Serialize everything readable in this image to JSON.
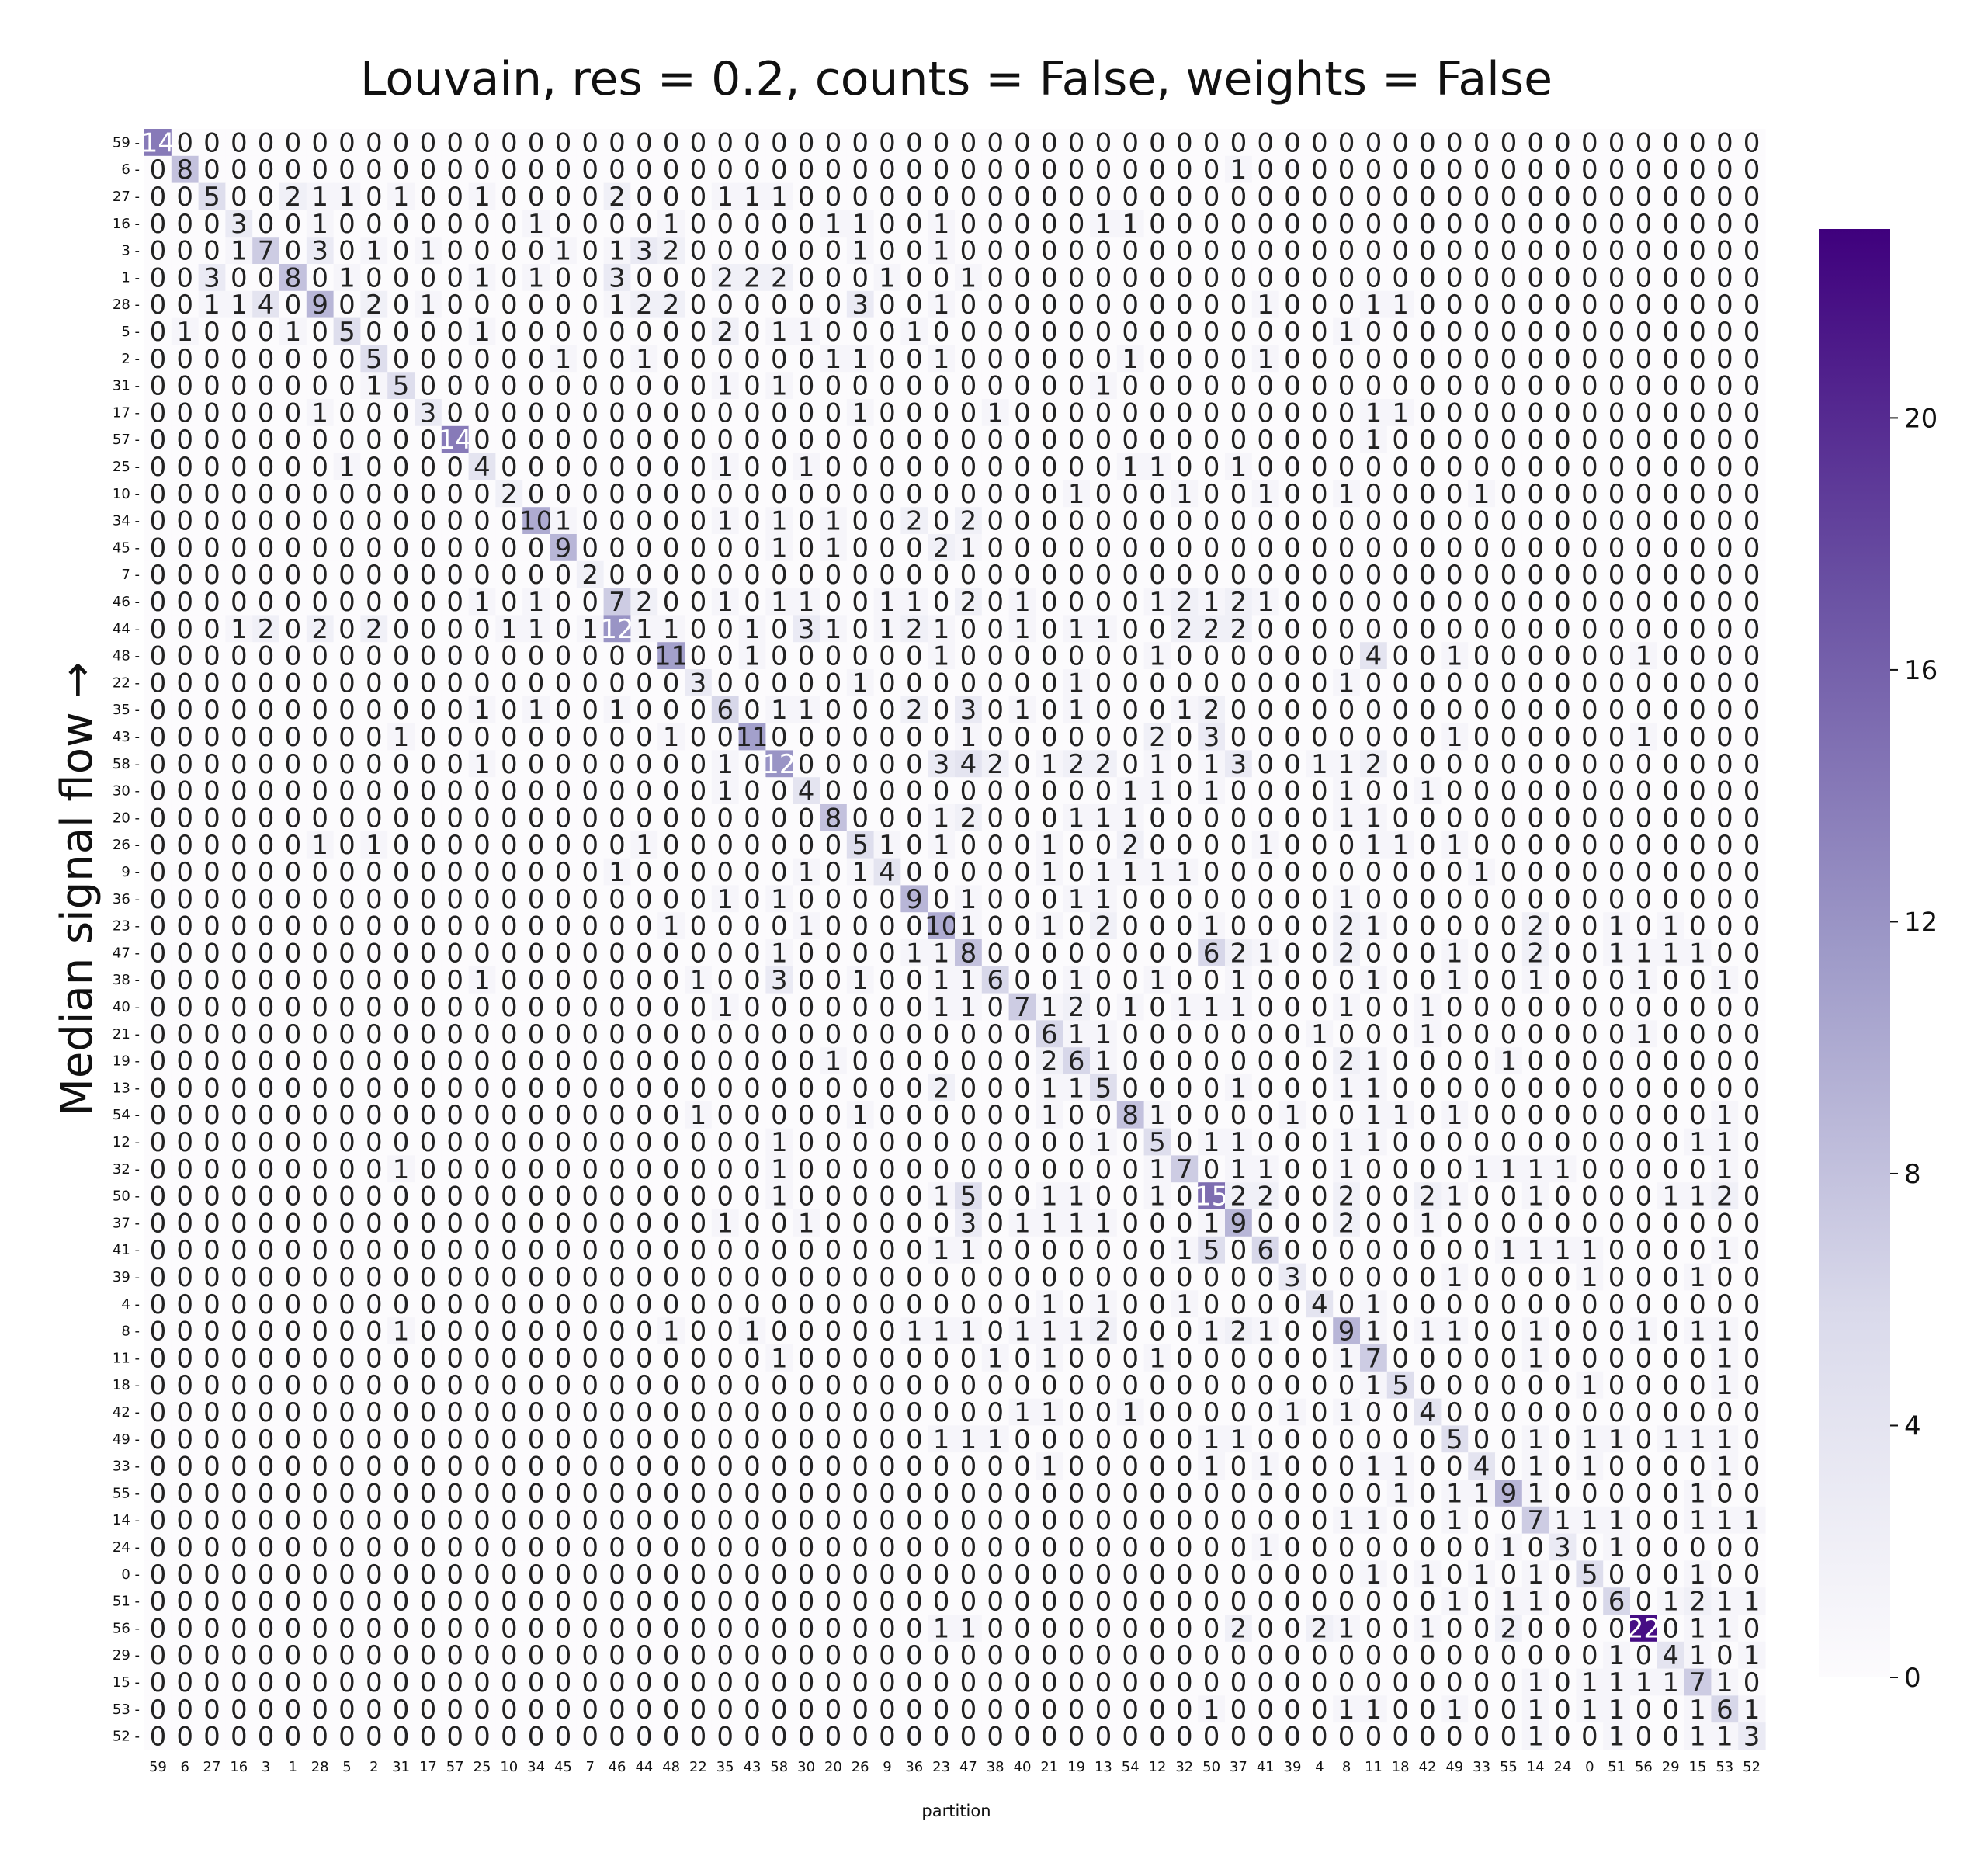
{
  "chart_data": {
    "type": "heatmap",
    "title": "Louvain, res = 0.2, counts = False, weights = False",
    "xlabel": "partition",
    "ylabel": "Median signal flow →",
    "color_range": [
      0,
      23
    ],
    "colorbar_ticks": [
      0,
      4,
      8,
      12,
      16,
      20
    ],
    "colors": {
      "low": "#fcfbfd",
      "mid": "#9e9ac8",
      "high": "#3f007d"
    },
    "x_labels": [
      "59",
      "6",
      "27",
      "16",
      "3",
      "1",
      "28",
      "5",
      "2",
      "31",
      "17",
      "57",
      "25",
      "10",
      "34",
      "45",
      "7",
      "46",
      "44",
      "48",
      "22",
      "35",
      "43",
      "58",
      "30",
      "20",
      "26",
      "9",
      "36",
      "23",
      "47",
      "38",
      "40",
      "21",
      "19",
      "13",
      "54",
      "12",
      "32",
      "50",
      "37",
      "41",
      "39",
      "4",
      "8",
      "11",
      "18",
      "42",
      "49",
      "33",
      "55",
      "14",
      "24",
      "0",
      "51",
      "56",
      "29",
      "15",
      "53",
      "52"
    ],
    "y_labels": [
      "59",
      "6",
      "27",
      "16",
      "3",
      "1",
      "28",
      "5",
      "2",
      "31",
      "17",
      "57",
      "25",
      "10",
      "34",
      "45",
      "7",
      "46",
      "44",
      "48",
      "22",
      "35",
      "43",
      "58",
      "30",
      "20",
      "26",
      "9",
      "36",
      "23",
      "47",
      "38",
      "40",
      "21",
      "19",
      "13",
      "54",
      "12",
      "32",
      "50",
      "37",
      "41",
      "39",
      "4",
      "8",
      "11",
      "18",
      "42",
      "49",
      "33",
      "55",
      "14",
      "24",
      "0",
      "51",
      "56",
      "29",
      "15",
      "53",
      "52"
    ],
    "rows": [
      "14 0 0 0 0 0 0 0 0 0 0 0 0 0 0 0 0 0 0 0 0 0 0 0 0 0 0 0 0 0 0 0 0 0 0 0 0 0 0 0 0 0 0 0 0 0 0 0 0 0 0 0 0 0 0 0 0 0 0 0",
      "0 8 0 0 0 0 0 0 0 0 0 0 0 0 0 0 0 0 0 0 0 0 0 0 0 0 0 0 0 0 0 0 0 0 0 0 0 0 0 0 1 0 0 0 0 0 0 0 0 0 0 0 0 0 0 0 0 0 0 0",
      "0 0 5 0 0 2 1 1 0 1 0 0 1 0 0 0 0 2 0 0 0 1 1 1 0 0 0 0 0 0 0 0 0 0 0 0 0 0 0 0 0 0 0 0 0 0 0 0 0 0 0 0 0 0 0 0 0 0 0 0",
      "0 0 0 3 0 0 1 0 0 0 0 0 0 0 1 0 0 0 0 1 0 0 0 0 0 1 1 0 0 1 0 0 0 0 0 1 1 0 0 0 0 0 0 0 0 0 0 0 0 0 0 0 0 0 0 0 0 0 0 0",
      "0 0 0 1 7 0 3 0 1 0 1 0 0 0 0 1 0 1 3 2 0 0 0 0 0 0 1 0 0 1 0 0 0 0 0 0 0 0 0 0 0 0 0 0 0 0 0 0 0 0 0 0 0 0 0 0 0 0 0 0",
      "0 0 3 0 0 8 0 1 0 0 0 0 1 0 1 0 0 3 0 0 0 2 2 2 0 0 0 1 0 0 1 0 0 0 0 0 0 0 0 0 0 0 0 0 0 0 0 0 0 0 0 0 0 0 0 0 0 0 0 0",
      "0 0 1 1 4 0 9 0 2 0 1 0 0 0 0 0 0 1 2 2 0 0 0 0 0 0 3 0 0 1 0 0 0 0 0 0 0 0 0 0 0 1 0 0 0 1 1 0 0 0 0 0 0 0 0 0 0 0 0 0",
      "0 1 0 0 0 1 0 5 0 0 0 0 1 0 0 0 0 0 0 0 0 2 0 1 1 0 0 0 1 0 0 0 0 0 0 0 0 0 0 0 0 0 0 0 1 0 0 0 0 0 0 0 0 0 0 0 0 0 0 0",
      "0 0 0 0 0 0 0 0 5 0 0 0 0 0 0 1 0 0 1 0 0 0 0 0 0 1 1 0 0 1 0 0 0 0 0 0 1 0 0 0 0 1 0 0 0 0 0 0 0 0 0 0 0 0 0 0 0 0 0 0",
      "0 0 0 0 0 0 0 0 1 5 0 0 0 0 0 0 0 0 0 0 0 1 0 1 0 0 0 0 0 0 0 0 0 0 0 1 0 0 0 0 0 0 0 0 0 0 0 0 0 0 0 0 0 0 0 0 0 0 0 0",
      "0 0 0 0 0 0 1 0 0 0 3 0 0 0 0 0 0 0 0 0 0 0 0 0 0 0 1 0 0 0 0 1 0 0 0 0 0 0 0 0 0 0 0 0 0 1 1 0 0 0 0 0 0 0 0 0 0 0 0 0",
      "0 0 0 0 0 0 0 0 0 0 0 14 0 0 0 0 0 0 0 0 0 0 0 0 0 0 0 0 0 0 0 0 0 0 0 0 0 0 0 0 0 0 0 0 0 1 0 0 0 0 0 0 0 0 0 0 0 0 0 0",
      "0 0 0 0 0 0 0 1 0 0 0 0 4 0 0 0 0 0 0 0 0 1 0 0 1 0 0 0 0 0 0 0 0 0 0 0 1 1 0 0 1 0 0 0 0 0 0 0 0 0 0 0 0 0 0 0 0 0 0 0",
      "0 0 0 0 0 0 0 0 0 0 0 0 0 2 0 0 0 0 0 0 0 0 0 0 0 0 0 0 0 0 0 0 0 0 1 0 0 0 1 0 0 1 0 0 1 0 0 0 0 1 0 0 0 0 0 0 0 0 0 0",
      "0 0 0 0 0 0 0 0 0 0 0 0 0 0 10 1 0 0 0 0 0 1 0 1 0 1 0 0 2 0 2 0 0 0 0 0 0 0 0 0 0 0 0 0 0 0 0 0 0 0 0 0 0 0 0 0 0 0 0 0",
      "0 0 0 0 0 0 0 0 0 0 0 0 0 0 0 9 0 0 0 0 0 0 0 1 0 1 0 0 0 2 1 0 0 0 0 0 0 0 0 0 0 0 0 0 0 0 0 0 0 0 0 0 0 0 0 0 0 0 0 0",
      "0 0 0 0 0 0 0 0 0 0 0 0 0 0 0 0 2 0 0 0 0 0 0 0 0 0 0 0 0 0 0 0 0 0 0 0 0 0 0 0 0 0 0 0 0 0 0 0 0 0 0 0 0 0 0 0 0 0 0 0",
      "0 0 0 0 0 0 0 0 0 0 0 0 1 0 1 0 0 7 2 0 0 1 0 1 1 0 0 1 1 0 2 0 1 0 0 0 0 1 2 1 2 1 0 0 0 0 0 0 0 0 0 0 0 0 0 0 0 0 0 0",
      "0 0 0 1 2 0 2 0 2 0 0 0 0 1 1 0 1 12 1 1 0 0 1 0 3 1 0 1 2 1 0 0 1 0 1 1 0 0 2 2 2 0 0 0 0 0 0 0 0 0 0 0 0 0 0 0 0 0 0 0",
      "0 0 0 0 0 0 0 0 0 0 0 0 0 0 0 0 0 0 0 11 0 0 1 0 0 0 0 0 0 1 0 0 0 0 0 0 0 1 0 0 0 0 0 0 0 4 0 0 1 0 0 0 0 0 0 1 0 0 0 0",
      "0 0 0 0 0 0 0 0 0 0 0 0 0 0 0 0 0 0 0 0 3 0 0 0 0 0 1 0 0 0 0 0 0 0 1 0 0 0 0 0 0 0 0 0 1 0 0 0 0 0 0 0 0 0 0 0 0 0 0 0",
      "0 0 0 0 0 0 0 0 0 0 0 0 1 0 1 0 0 1 0 0 0 6 0 1 1 0 0 0 2 0 3 0 1 0 1 0 0 0 1 2 0 0 0 0 0 0 0 0 0 0 0 0 0 0 0 0 0 0 0 0",
      "0 0 0 0 0 0 0 0 0 1 0 0 0 0 0 0 0 0 0 1 0 0 11 0 0 0 0 0 0 0 1 0 0 0 0 0 0 2 0 3 0 0 0 0 0 0 0 0 1 0 0 0 0 0 0 1 0 0 0 0",
      "0 0 0 0 0 0 0 0 0 0 0 0 1 0 0 0 0 0 0 0 0 1 0 12 0 0 0 0 0 3 4 2 0 1 2 2 0 1 0 1 3 0 0 1 1 2 0 0 0 0 0 0 0 0 0 0 0 0 0 0",
      "0 0 0 0 0 0 0 0 0 0 0 0 0 0 0 0 0 0 0 0 0 1 0 0 4 0 0 0 0 0 0 0 0 0 0 0 1 1 0 1 0 0 0 0 1 0 0 1 0 0 0 0 0 0 0 0 0 0 0 0",
      "0 0 0 0 0 0 0 0 0 0 0 0 0 0 0 0 0 0 0 0 0 0 0 0 0 8 0 0 0 1 2 0 0 0 1 1 1 0 0 0 0 0 0 0 1 1 0 0 0 0 0 0 0 0 0 0 0 0 0 0",
      "0 0 0 0 0 0 1 0 1 0 0 0 0 0 0 0 0 0 1 0 0 0 0 0 0 0 5 1 0 1 0 0 0 1 0 0 2 0 0 0 0 1 0 0 0 1 1 0 1 0 0 0 0 0 0 0 0 0 0 0",
      "0 0 0 0 0 0 0 0 0 0 0 0 0 0 0 0 0 1 0 0 0 0 0 0 1 0 1 4 0 0 0 0 0 1 0 1 1 1 1 0 0 0 0 0 0 0 0 0 0 1 0 0 0 0 0 0 0 0 0 0",
      "0 0 0 0 0 0 0 0 0 0 0 0 0 0 0 0 0 0 0 0 0 1 0 1 0 0 0 0 9 0 1 0 0 0 1 1 0 0 0 0 0 0 0 0 1 0 0 0 0 0 0 0 0 0 0 0 0 0 0 0",
      "0 0 0 0 0 0 0 0 0 0 0 0 0 0 0 0 0 0 0 1 0 0 0 0 1 0 0 0 0 10 1 0 0 1 0 2 0 0 0 1 0 0 0 0 2 1 0 0 0 0 0 2 0 0 1 0 1 0 0 0",
      "0 0 0 0 0 0 0 0 0 0 0 0 0 0 0 0 0 0 0 0 0 0 0 1 0 0 0 0 1 1 8 0 0 0 0 0 0 0 0 6 2 1 0 0 2 0 0 0 1 0 0 2 0 0 1 1 1 1 0 0",
      "0 0 0 0 0 0 0 0 0 0 0 0 1 0 0 0 0 0 0 0 1 0 0 3 0 0 1 0 0 1 1 6 0 0 1 0 0 1 0 0 1 0 0 0 0 1 0 0 1 0 0 1 0 0 0 1 0 0 1 0",
      "0 0 0 0 0 0 0 0 0 0 0 0 0 0 0 0 0 0 0 0 0 1 0 0 0 0 0 0 0 1 1 0 7 1 2 0 1 0 1 1 1 0 0 0 1 0 0 1 0 0 0 0 0 0 0 0 0 0 0 0",
      "0 0 0 0 0 0 0 0 0 0 0 0 0 0 0 0 0 0 0 0 0 0 0 0 0 0 0 0 0 0 0 0 0 6 1 1 0 0 0 0 0 0 0 1 0 0 0 1 0 0 0 0 0 0 0 1 0 0 0 0",
      "0 0 0 0 0 0 0 0 0 0 0 0 0 0 0 0 0 0 0 0 0 0 0 0 0 1 0 0 0 0 0 0 0 2 6 1 0 0 0 0 0 0 0 0 2 1 0 0 0 0 1 0 0 0 0 0 0 0 0 0",
      "0 0 0 0 0 0 0 0 0 0 0 0 0 0 0 0 0 0 0 0 0 0 0 0 0 0 0 0 0 2 0 0 0 1 1 5 0 0 0 0 1 0 0 0 1 1 0 0 0 0 0 0 0 0 0 0 0 0 0 0",
      "0 0 0 0 0 0 0 0 0 0 0 0 0 0 0 0 0 0 0 0 1 0 0 0 0 0 1 0 0 0 0 0 0 1 0 0 8 1 0 0 0 0 1 0 0 1 1 0 1 0 0 0 0 0 0 0 0 0 1 0",
      "0 0 0 0 0 0 0 0 0 0 0 0 0 0 0 0 0 0 0 0 0 0 0 1 0 0 0 0 0 0 0 0 0 0 0 1 0 5 0 1 1 0 0 0 1 1 0 0 0 0 0 0 0 0 0 0 0 1 1 0",
      "0 0 0 0 0 0 0 0 0 1 0 0 0 0 0 0 0 0 0 0 0 0 0 1 0 0 0 0 0 0 0 0 0 0 0 0 0 1 7 0 1 1 0 0 1 0 0 0 0 1 1 1 1 0 0 0 0 0 1 0",
      "0 0 0 0 0 0 0 0 0 0 0 0 0 0 0 0 0 0 0 0 0 0 0 1 0 0 0 0 0 1 5 0 0 1 1 0 0 1 0 15 2 2 0 0 2 0 0 2 1 0 0 1 0 0 0 0 1 1 2 0",
      "0 0 0 0 0 0 0 0 0 0 0 0 0 0 0 0 0 0 0 0 0 1 0 0 1 0 0 0 0 0 3 0 1 1 1 1 0 0 0 1 9 0 0 0 2 0 0 1 0 0 0 0 0 0 0 0 0 0 0 0",
      "0 0 0 0 0 0 0 0 0 0 0 0 0 0 0 0 0 0 0 0 0 0 0 0 0 0 0 0 0 1 1 0 0 0 0 0 0 0 1 5 0 6 0 0 0 0 0 0 0 0 1 1 1 1 0 0 0 0 1 0",
      "0 0 0 0 0 0 0 0 0 0 0 0 0 0 0 0 0 0 0 0 0 0 0 0 0 0 0 0 0 0 0 0 0 0 0 0 0 0 0 0 0 0 3 0 0 0 0 0 1 0 0 0 0 1 0 0 0 1 0 0",
      "0 0 0 0 0 0 0 0 0 0 0 0 0 0 0 0 0 0 0 0 0 0 0 0 0 0 0 0 0 0 0 0 0 1 0 1 0 0 1 0 0 0 0 4 0 1 0 0 0 0 0 0 0 0 0 0 0 0 0 0",
      "0 0 0 0 0 0 0 0 0 1 0 0 0 0 0 0 0 0 0 1 0 0 1 0 0 0 0 0 1 1 1 0 1 1 1 2 0 0 0 1 2 1 0 0 9 1 0 1 1 0 0 1 0 0 0 1 0 1 1 0",
      "0 0 0 0 0 0 0 0 0 0 0 0 0 0 0 0 0 0 0 0 0 0 0 1 0 0 0 0 0 0 0 1 0 1 0 0 0 1 0 0 0 0 0 0 1 7 0 0 0 0 0 1 0 0 0 0 0 0 1 0",
      "0 0 0 0 0 0 0 0 0 0 0 0 0 0 0 0 0 0 0 0 0 0 0 0 0 0 0 0 0 0 0 0 0 0 0 0 0 0 0 0 0 0 0 0 0 1 5 0 0 0 0 0 0 1 0 0 0 0 1 0",
      "0 0 0 0 0 0 0 0 0 0 0 0 0 0 0 0 0 0 0 0 0 0 0 0 0 0 0 0 0 0 0 0 1 1 0 0 1 0 0 0 0 0 1 0 1 0 0 4 0 0 0 0 0 0 0 0 0 0 0 0",
      "0 0 0 0 0 0 0 0 0 0 0 0 0 0 0 0 0 0 0 0 0 0 0 0 0 0 0 0 0 1 1 1 0 0 0 0 0 0 0 1 1 0 0 0 0 0 0 0 5 0 0 1 0 1 1 0 1 1 1 0",
      "0 0 0 0 0 0 0 0 0 0 0 0 0 0 0 0 0 0 0 0 0 0 0 0 0 0 0 0 0 0 0 0 0 1 0 0 0 0 0 1 0 1 0 0 0 1 1 0 0 4 0 1 0 1 0 0 0 0 1 0",
      "0 0 0 0 0 0 0 0 0 0 0 0 0 0 0 0 0 0 0 0 0 0 0 0 0 0 0 0 0 0 0 0 0 0 0 0 0 0 0 0 0 0 0 0 0 0 1 0 1 1 9 1 0 0 0 0 0 1 0 0",
      "0 0 0 0 0 0 0 0 0 0 0 0 0 0 0 0 0 0 0 0 0 0 0 0 0 0 0 0 0 0 0 0 0 0 0 0 0 0 0 0 0 0 0 0 1 1 0 0 1 0 0 7 1 1 1 0 0 1 1 1",
      "0 0 0 0 0 0 0 0 0 0 0 0 0 0 0 0 0 0 0 0 0 0 0 0 0 0 0 0 0 0 0 0 0 0 0 0 0 0 0 0 0 1 0 0 0 0 0 0 0 0 1 0 3 0 1 0 0 0 0 0",
      "0 0 0 0 0 0 0 0 0 0 0 0 0 0 0 0 0 0 0 0 0 0 0 0 0 0 0 0 0 0 0 0 0 0 0 0 0 0 0 0 0 0 0 0 0 1 0 1 0 1 0 1 0 5 0 0 0 1 0 0",
      "0 0 0 0 0 0 0 0 0 0 0 0 0 0 0 0 0 0 0 0 0 0 0 0 0 0 0 0 0 0 0 0 0 0 0 0 0 0 0 0 0 0 0 0 0 0 0 0 1 0 1 1 0 0 6 0 1 2 1 1",
      "0 0 0 0 0 0 0 0 0 0 0 0 0 0 0 0 0 0 0 0 0 0 0 0 0 0 0 0 0 1 1 0 0 0 0 0 0 0 0 0 2 0 0 2 1 0 0 1 0 0 2 0 0 0 0 22 0 1 1 0",
      "0 0 0 0 0 0 0 0 0 0 0 0 0 0 0 0 0 0 0 0 0 0 0 0 0 0 0 0 0 0 0 0 0 0 0 0 0 0 0 0 0 0 0 0 0 0 0 0 0 0 0 0 0 0 1 0 4 1 0 1",
      "0 0 0 0 0 0 0 0 0 0 0 0 0 0 0 0 0 0 0 0 0 0 0 0 0 0 0 0 0 0 0 0 0 0 0 0 0 0 0 0 0 0 0 0 0 0 0 0 0 0 0 1 0 1 1 1 1 7 1 0",
      "0 0 0 0 0 0 0 0 0 0 0 0 0 0 0 0 0 0 0 0 0 0 0 0 0 0 0 0 0 0 0 0 0 0 0 0 0 0 0 1 0 0 0 0 1 1 0 0 1 0 0 1 0 1 1 0 0 1 6 1",
      "0 0 0 0 0 0 0 0 0 0 0 0 0 0 0 0 0 0 0 0 0 0 0 0 0 0 0 0 0 0 0 0 0 0 0 0 0 0 0 0 0 0 0 0 0 0 0 0 0 0 0 1 0 0 1 0 0 1 1 3"
    ]
  }
}
